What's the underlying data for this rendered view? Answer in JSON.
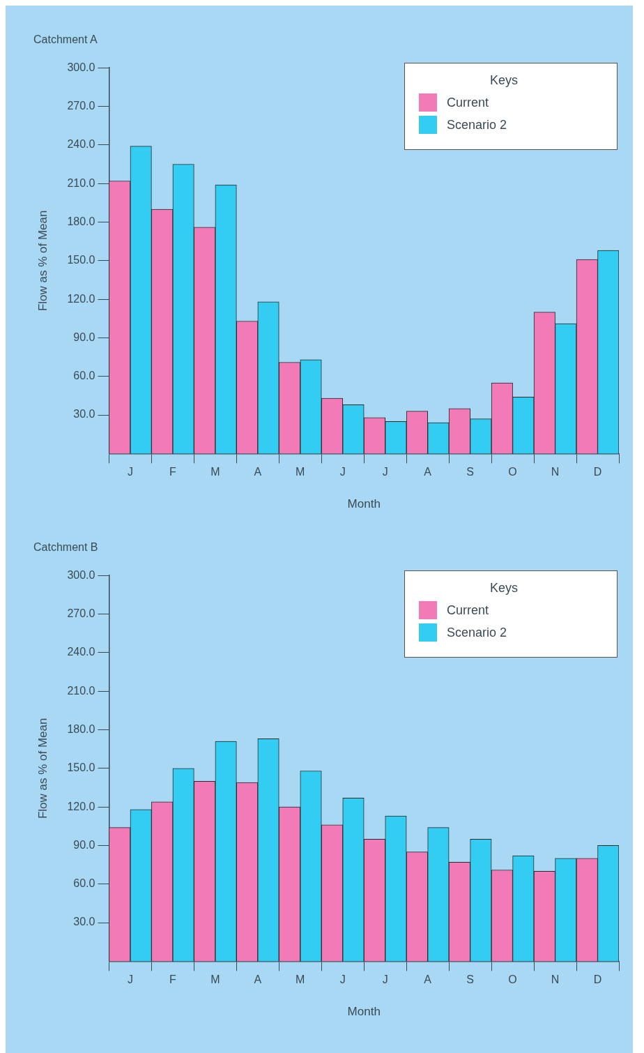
{
  "chart_data": [
    {
      "type": "bar",
      "title": "Catchment A",
      "xlabel": "Month",
      "ylabel": "Flow as % of Mean",
      "categories": [
        "J",
        "F",
        "M",
        "A",
        "M",
        "J",
        "J",
        "A",
        "S",
        "O",
        "N",
        "D"
      ],
      "series": [
        {
          "name": "Current",
          "color": "#f27ab6",
          "values": [
            212,
            190,
            176,
            103,
            71,
            43,
            28,
            33,
            35,
            55,
            110,
            151
          ]
        },
        {
          "name": "Scenario 2",
          "color": "#33ccf2",
          "values": [
            239,
            225,
            209,
            118,
            73,
            38,
            25,
            24,
            27,
            44,
            101,
            158
          ]
        }
      ],
      "ylim": [
        0,
        300
      ],
      "yticks": [
        {
          "value": 30,
          "label": "30.0"
        },
        {
          "value": 60,
          "label": "60.0"
        },
        {
          "value": 90,
          "label": "90.0"
        },
        {
          "value": 120,
          "label": "120.0"
        },
        {
          "value": 150,
          "label": "150.0"
        },
        {
          "value": 180,
          "label": "180.0"
        },
        {
          "value": 210,
          "label": "210.0"
        },
        {
          "value": 240,
          "label": "240.0"
        },
        {
          "value": 270,
          "label": "270.0"
        },
        {
          "value": 300,
          "label": "300.0"
        }
      ],
      "legend": "top right",
      "legend_title": "Keys",
      "grid": false
    },
    {
      "type": "bar",
      "title": "Catchment B",
      "xlabel": "Month",
      "ylabel": "Flow as % of Mean",
      "categories": [
        "J",
        "F",
        "M",
        "A",
        "M",
        "J",
        "J",
        "A",
        "S",
        "O",
        "N",
        "D"
      ],
      "series": [
        {
          "name": "Current",
          "color": "#f27ab6",
          "values": [
            104,
            124,
            140,
            139,
            120,
            106,
            95,
            85,
            77,
            71,
            70,
            80
          ]
        },
        {
          "name": "Scenario 2",
          "color": "#33ccf2",
          "values": [
            118,
            150,
            171,
            173,
            148,
            127,
            113,
            104,
            95,
            82,
            80,
            90
          ]
        }
      ],
      "ylim": [
        0,
        300
      ],
      "yticks": [
        {
          "value": 30,
          "label": "30.0"
        },
        {
          "value": 60,
          "label": "60.0"
        },
        {
          "value": 90,
          "label": "90.0"
        },
        {
          "value": 120,
          "label": "120.0"
        },
        {
          "value": 150,
          "label": "150.0"
        },
        {
          "value": 180,
          "label": "180.0"
        },
        {
          "value": 210,
          "label": "210.0"
        },
        {
          "value": 240,
          "label": "240.0"
        },
        {
          "value": 270,
          "label": "270.0"
        },
        {
          "value": 300,
          "label": "300.0"
        }
      ],
      "legend": "top right",
      "legend_title": "Keys",
      "grid": false
    }
  ]
}
